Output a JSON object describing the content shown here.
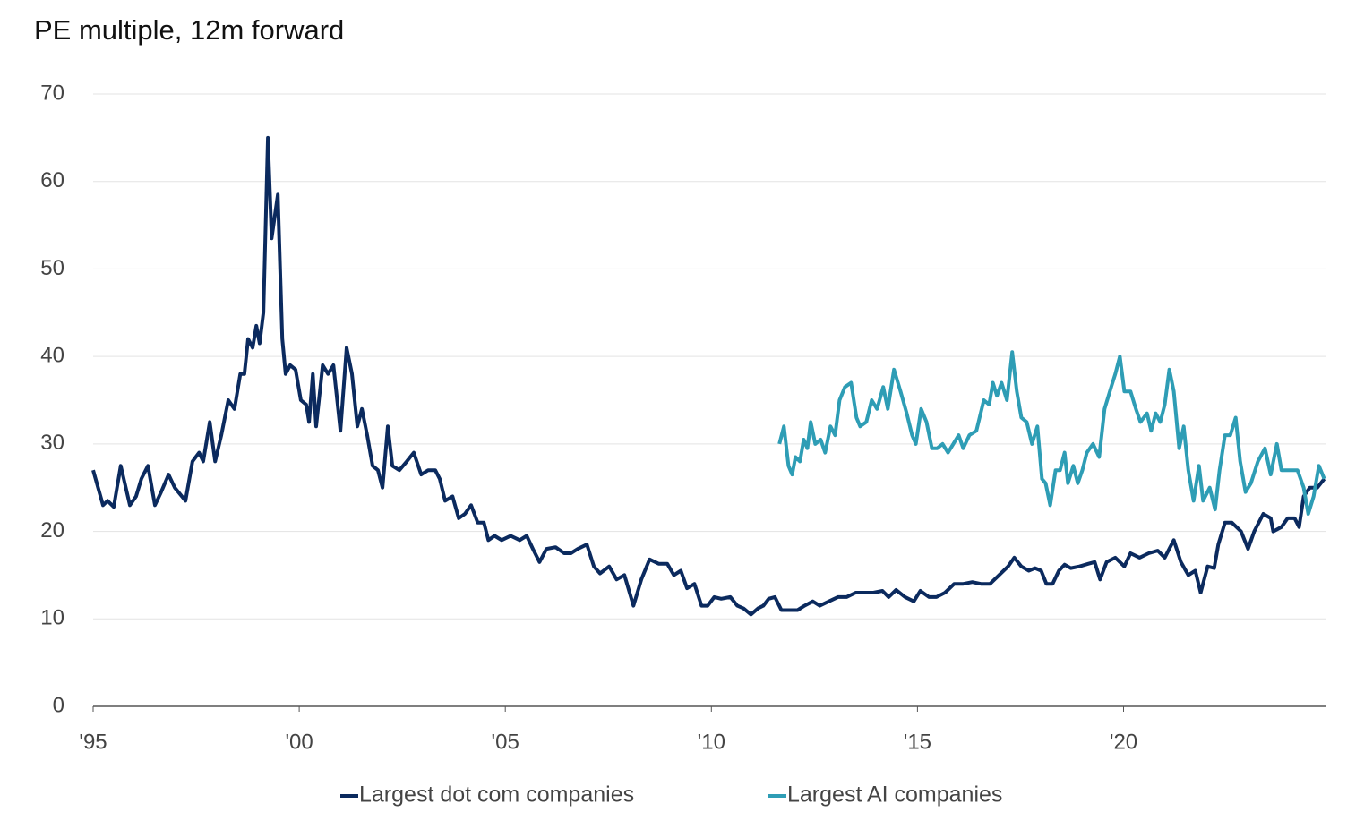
{
  "chart_data": {
    "type": "line",
    "title": "PE multiple, 12m forward",
    "xlim": [
      1995,
      2024.9
    ],
    "ylim": [
      0,
      70
    ],
    "yticks": [
      0,
      10,
      20,
      30,
      40,
      50,
      60,
      70
    ],
    "xticks": [
      {
        "value": 1995,
        "label": "'95"
      },
      {
        "value": 2000,
        "label": "'00"
      },
      {
        "value": 2005,
        "label": "'05"
      },
      {
        "value": 2010,
        "label": "'10"
      },
      {
        "value": 2015,
        "label": "'15"
      },
      {
        "value": 2020,
        "label": "'20"
      }
    ],
    "grid": true,
    "legend": "bottom",
    "series": [
      {
        "name": "Largest dot com companies",
        "color": "#0b2a5e",
        "x": [
          1995.0,
          1995.24,
          1995.35,
          1995.5,
          1995.67,
          1995.89,
          1996.04,
          1996.17,
          1996.33,
          1996.5,
          1996.65,
          1996.83,
          1996.98,
          1997.24,
          1997.41,
          1997.57,
          1997.67,
          1997.83,
          1997.96,
          1998.11,
          1998.28,
          1998.43,
          1998.57,
          1998.67,
          1998.76,
          1998.87,
          1998.96,
          1999.04,
          1999.13,
          1999.24,
          1999.33,
          1999.48,
          1999.59,
          1999.67,
          1999.78,
          1999.91,
          2000.04,
          2000.17,
          2000.24,
          2000.33,
          2000.41,
          2000.57,
          2000.7,
          2000.83,
          2001.0,
          2001.15,
          2001.28,
          2001.41,
          2001.52,
          2001.65,
          2001.78,
          2001.91,
          2002.02,
          2002.15,
          2002.26,
          2002.43,
          2002.61,
          2002.78,
          2002.96,
          2003.13,
          2003.3,
          2003.41,
          2003.54,
          2003.72,
          2003.87,
          2004.02,
          2004.17,
          2004.33,
          2004.48,
          2004.59,
          2004.74,
          2004.91,
          2005.13,
          2005.35,
          2005.52,
          2005.67,
          2005.83,
          2006.0,
          2006.22,
          2006.43,
          2006.59,
          2006.76,
          2006.98,
          2007.15,
          2007.3,
          2007.52,
          2007.7,
          2007.89,
          2008.11,
          2008.3,
          2008.5,
          2008.72,
          2008.93,
          2009.09,
          2009.26,
          2009.41,
          2009.59,
          2009.76,
          2009.91,
          2010.07,
          2010.24,
          2010.46,
          2010.63,
          2010.78,
          2010.96,
          2011.13,
          2011.26,
          2011.39,
          2011.54,
          2011.7,
          2011.87,
          2012.09,
          2012.26,
          2012.46,
          2012.63,
          2012.85,
          2013.07,
          2013.28,
          2013.5,
          2013.72,
          2013.93,
          2014.15,
          2014.3,
          2014.48,
          2014.7,
          2014.91,
          2015.07,
          2015.28,
          2015.46,
          2015.67,
          2015.89,
          2016.11,
          2016.33,
          2016.54,
          2016.76,
          2016.98,
          2017.2,
          2017.35,
          2017.52,
          2017.7,
          2017.85,
          2018.0,
          2018.13,
          2018.28,
          2018.43,
          2018.57,
          2018.72,
          2018.93,
          2019.15,
          2019.3,
          2019.43,
          2019.59,
          2019.8,
          2020.02,
          2020.17,
          2020.39,
          2020.61,
          2020.83,
          2021.0,
          2021.22,
          2021.39,
          2021.57,
          2021.74,
          2021.87,
          2022.04,
          2022.2,
          2022.3,
          2022.46,
          2022.63,
          2022.85,
          2023.02,
          2023.17,
          2023.39,
          2023.57,
          2023.63,
          2023.83,
          2023.98,
          2024.15,
          2024.26,
          2024.37,
          2024.52,
          2024.7,
          2024.87
        ],
        "values": [
          27,
          23,
          23.5,
          22.8,
          27.5,
          23,
          24,
          26,
          27.5,
          23,
          24.5,
          26.5,
          25,
          23.5,
          28,
          29,
          28,
          32.5,
          28,
          31,
          35,
          34,
          38,
          38,
          42,
          41,
          43.5,
          41.5,
          45,
          65,
          53.5,
          58.5,
          42,
          38,
          39,
          38.5,
          35,
          34.5,
          32.5,
          38,
          32,
          39,
          38,
          39,
          31.5,
          41,
          38,
          32,
          34,
          31,
          27.5,
          27,
          25,
          32,
          27.5,
          27,
          28,
          29,
          26.5,
          27,
          27,
          26,
          23.5,
          24,
          21.5,
          22,
          23,
          21,
          21,
          19,
          19.5,
          19,
          19.5,
          19,
          19.5,
          18,
          16.5,
          18,
          18.2,
          17.5,
          17.5,
          18,
          18.5,
          16,
          15.2,
          16,
          14.5,
          15,
          11.5,
          14.5,
          16.8,
          16.3,
          16.3,
          15,
          15.5,
          13.5,
          14,
          11.5,
          11.5,
          12.5,
          12.3,
          12.5,
          11.5,
          11.2,
          10.5,
          11.2,
          11.5,
          12.3,
          12.5,
          11,
          11,
          11,
          11.5,
          12,
          11.5,
          12,
          12.5,
          12.5,
          13,
          13,
          13,
          13.2,
          12.5,
          13.3,
          12.5,
          12,
          13.2,
          12.5,
          12.5,
          13,
          14,
          14,
          14.2,
          14,
          14,
          15,
          16,
          17,
          16,
          15.5,
          15.8,
          15.5,
          14,
          14,
          15.5,
          16.2,
          15.8,
          16,
          16.3,
          16.5,
          14.5,
          16.5,
          17,
          16,
          17.5,
          17,
          17.5,
          17.8,
          17,
          19,
          16.5,
          15,
          15.5,
          13,
          16,
          15.8,
          18.5,
          21,
          21,
          20,
          18,
          20,
          22,
          21.5,
          20,
          20.5,
          21.5,
          21.5,
          20.5,
          24,
          25,
          25,
          26
        ]
      },
      {
        "name": "Largest AI companies",
        "color": "#2e9db5",
        "x": [
          2011.65,
          2011.76,
          2011.87,
          2011.96,
          2012.04,
          2012.15,
          2012.24,
          2012.33,
          2012.41,
          2012.52,
          2012.65,
          2012.76,
          2012.89,
          2013.0,
          2013.11,
          2013.24,
          2013.39,
          2013.52,
          2013.61,
          2013.76,
          2013.89,
          2014.02,
          2014.17,
          2014.28,
          2014.43,
          2014.59,
          2014.74,
          2014.87,
          2014.96,
          2015.09,
          2015.22,
          2015.35,
          2015.48,
          2015.61,
          2015.74,
          2015.87,
          2016.0,
          2016.11,
          2016.26,
          2016.43,
          2016.61,
          2016.74,
          2016.83,
          2016.93,
          2017.04,
          2017.17,
          2017.3,
          2017.41,
          2017.52,
          2017.65,
          2017.78,
          2017.91,
          2018.02,
          2018.11,
          2018.22,
          2018.35,
          2018.46,
          2018.57,
          2018.65,
          2018.78,
          2018.89,
          2019.0,
          2019.11,
          2019.26,
          2019.41,
          2019.54,
          2019.7,
          2019.8,
          2019.91,
          2020.02,
          2020.17,
          2020.3,
          2020.41,
          2020.57,
          2020.67,
          2020.78,
          2020.89,
          2021.0,
          2021.11,
          2021.22,
          2021.35,
          2021.46,
          2021.57,
          2021.7,
          2021.83,
          2021.93,
          2022.09,
          2022.22,
          2022.33,
          2022.46,
          2022.59,
          2022.72,
          2022.83,
          2022.96,
          2023.09,
          2023.26,
          2023.43,
          2023.57,
          2023.72,
          2023.83,
          2024.04,
          2024.22,
          2024.37,
          2024.48,
          2024.61,
          2024.74,
          2024.87
        ],
        "values": [
          30,
          32,
          27.5,
          26.5,
          28.5,
          28,
          30.5,
          29.5,
          32.5,
          30,
          30.5,
          29,
          32,
          31,
          35,
          36.5,
          37,
          33,
          32,
          32.5,
          35,
          34,
          36.5,
          34,
          38.5,
          36,
          33.5,
          31,
          30,
          34,
          32.5,
          29.5,
          29.5,
          30,
          29,
          30,
          31,
          29.5,
          31,
          31.5,
          35,
          34.5,
          37,
          35.5,
          37,
          35,
          40.5,
          36,
          33,
          32.5,
          30,
          32,
          26,
          25.5,
          23,
          27,
          27,
          29,
          25.5,
          27.5,
          25.5,
          27,
          29,
          30,
          28.5,
          34,
          36.5,
          38,
          40,
          36,
          36,
          34,
          32.5,
          33.5,
          31.5,
          33.5,
          32.5,
          34.5,
          38.5,
          36,
          29.5,
          32,
          27,
          23.5,
          27.5,
          23.5,
          25,
          22.5,
          27,
          31,
          31,
          33,
          28,
          24.5,
          25.5,
          28,
          29.5,
          26.5,
          30,
          27,
          27,
          27,
          25,
          22,
          24,
          27.5,
          26
        ]
      }
    ]
  }
}
